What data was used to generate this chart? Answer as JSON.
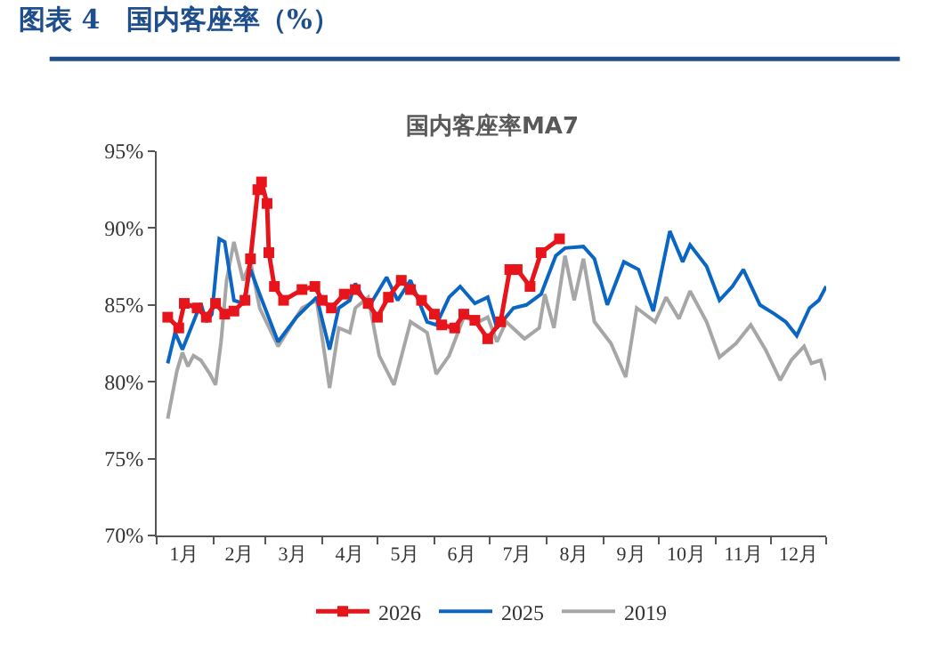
{
  "chart_data": {
    "type": "line",
    "title": "图表 4　国内客座率（%）",
    "subtitle": "国内客座率MA7",
    "xlim": [
      "--01-01",
      "--12-31"
    ],
    "xticks": [
      {
        "value": "--01-01",
        "label": null
      },
      {
        "value": "--01-16",
        "label": "1月"
      },
      {
        "value": "--02-01",
        "label": null
      },
      {
        "value": "--02-15",
        "label": "2月"
      },
      {
        "value": "--03-01",
        "label": null
      },
      {
        "value": "--03-16",
        "label": "3月"
      },
      {
        "value": "--04-01",
        "label": null
      },
      {
        "value": "--04-16",
        "label": "4月"
      },
      {
        "value": "--05-01",
        "label": null
      },
      {
        "value": "--05-16",
        "label": "5月"
      },
      {
        "value": "--06-01",
        "label": null
      },
      {
        "value": "--06-16",
        "label": "6月"
      },
      {
        "value": "--07-01",
        "label": null
      },
      {
        "value": "--07-16",
        "label": "7月"
      },
      {
        "value": "--08-01",
        "label": null
      },
      {
        "value": "--08-16",
        "label": "8月"
      },
      {
        "value": "--09-01",
        "label": null
      },
      {
        "value": "--09-16",
        "label": "9月"
      },
      {
        "value": "--10-01",
        "label": null
      },
      {
        "value": "--10-16",
        "label": "10月"
      },
      {
        "value": "--11-01",
        "label": null
      },
      {
        "value": "--11-16",
        "label": "11月"
      },
      {
        "value": "--12-01",
        "label": null
      },
      {
        "value": "--12-16",
        "label": "12月"
      },
      {
        "value": "--12-31",
        "label": null
      }
    ],
    "ylim": [
      70,
      95
    ],
    "yticks": [
      {
        "value": 70,
        "label": "70%"
      },
      {
        "value": 75,
        "label": "75%"
      },
      {
        "value": 80,
        "label": "80%"
      },
      {
        "value": 85,
        "label": "85%"
      },
      {
        "value": 90,
        "label": "90%"
      },
      {
        "value": 95,
        "label": "95%"
      }
    ],
    "legend": "bottom",
    "series": [
      {
        "name": "2026",
        "color": "#e8141b",
        "marker": "square",
        "x": [
          "--01-07",
          "--01-13",
          "--01-16",
          "--01-23",
          "--01-28",
          "--02-02",
          "--02-07",
          "--02-12",
          "--02-18",
          "--02-21",
          "--02-25",
          "--02-27",
          "--03-02",
          "--03-03",
          "--03-06",
          "--03-11",
          "--03-21",
          "--03-28",
          "--04-01",
          "--04-06",
          "--04-13",
          "--04-19",
          "--04-26",
          "--05-01",
          "--05-07",
          "--05-14",
          "--05-19",
          "--05-25",
          "--06-01",
          "--06-05",
          "--06-12",
          "--06-17",
          "--06-23",
          "--06-30",
          "--07-07",
          "--07-12",
          "--07-16",
          "--07-23",
          "--07-29",
          "--08-08"
        ],
        "values": [
          84.2,
          83.5,
          85.1,
          84.8,
          84.2,
          85.1,
          84.4,
          84.6,
          85.3,
          88.0,
          92.5,
          93.0,
          91.6,
          88.4,
          86.2,
          85.3,
          86.0,
          86.2,
          85.3,
          84.8,
          85.7,
          86.0,
          85.1,
          84.2,
          85.5,
          86.6,
          86.0,
          85.3,
          84.4,
          83.7,
          83.5,
          84.4,
          84.0,
          82.8,
          83.9,
          87.3,
          87.3,
          86.2,
          88.4,
          89.3
        ]
      },
      {
        "name": "2025",
        "color": "#0a66c2",
        "x": [
          "--01-07",
          "--01-11",
          "--01-15",
          "--01-25",
          "--01-28",
          "--01-31",
          "--02-04",
          "--02-07",
          "--02-12",
          "--02-17",
          "--02-21",
          "--02-26",
          "--03-08",
          "--03-18",
          "--03-29",
          "--04-05",
          "--04-10",
          "--04-16",
          "--04-19",
          "--04-26",
          "--05-06",
          "--05-12",
          "--05-19",
          "--05-28",
          "--06-02",
          "--06-09",
          "--06-15",
          "--06-23",
          "--06-30",
          "--07-05",
          "--07-14",
          "--07-21",
          "--07-29",
          "--08-06",
          "--08-11",
          "--08-21",
          "--08-27",
          "--09-03",
          "--09-12",
          "--09-20",
          "--09-28",
          "--10-07",
          "--10-14",
          "--10-18",
          "--10-27",
          "--11-03",
          "--11-10",
          "--11-16",
          "--11-25",
          "--12-03",
          "--12-09",
          "--12-15",
          "--12-22",
          "--12-27",
          "--12-31"
        ],
        "values": [
          81.2,
          83.2,
          82.1,
          85.1,
          83.9,
          84.4,
          89.3,
          89.1,
          85.3,
          85.1,
          87.3,
          85.7,
          82.6,
          84.2,
          85.5,
          82.1,
          84.8,
          85.3,
          86.4,
          84.8,
          86.8,
          85.3,
          86.6,
          83.9,
          83.7,
          85.5,
          86.2,
          85.1,
          85.5,
          83.5,
          84.8,
          85.0,
          85.7,
          88.2,
          88.7,
          88.8,
          88.0,
          85.0,
          87.8,
          87.3,
          84.6,
          89.8,
          87.8,
          88.9,
          87.5,
          85.3,
          86.2,
          87.3,
          85.0,
          84.4,
          83.9,
          83.0,
          84.8,
          85.3,
          86.2
        ]
      },
      {
        "name": "2019",
        "color": "#a6a6a6",
        "x": [
          "--01-07",
          "--01-12",
          "--01-15",
          "--01-18",
          "--01-21",
          "--01-25",
          "--01-30",
          "--02-02",
          "--02-05",
          "--02-08",
          "--02-12",
          "--02-17",
          "--02-21",
          "--02-26",
          "--03-08",
          "--03-21",
          "--03-29",
          "--04-05",
          "--04-10",
          "--04-16",
          "--04-19",
          "--04-26",
          "--05-02",
          "--05-10",
          "--05-19",
          "--05-28",
          "--06-02",
          "--06-09",
          "--06-17",
          "--06-25",
          "--06-30",
          "--07-05",
          "--07-10",
          "--07-20",
          "--07-28",
          "--07-31",
          "--08-05",
          "--08-11",
          "--08-16",
          "--08-21",
          "--08-27",
          "--09-05",
          "--09-13",
          "--09-19",
          "--09-29",
          "--10-05",
          "--10-12",
          "--10-18",
          "--10-27",
          "--11-03",
          "--11-12",
          "--11-20",
          "--11-28",
          "--12-06",
          "--12-12",
          "--12-19",
          "--12-23",
          "--12-28",
          "--12-31"
        ],
        "values": [
          77.6,
          80.7,
          81.9,
          81.0,
          81.7,
          81.4,
          80.5,
          79.8,
          82.6,
          86.6,
          89.1,
          86.6,
          87.8,
          84.8,
          82.3,
          84.8,
          85.3,
          79.6,
          83.5,
          83.2,
          84.8,
          85.5,
          81.7,
          79.8,
          83.9,
          83.2,
          80.5,
          81.7,
          84.2,
          83.9,
          84.2,
          82.6,
          83.9,
          82.8,
          83.5,
          85.7,
          83.5,
          88.2,
          85.3,
          88.0,
          83.9,
          82.5,
          80.3,
          84.8,
          83.9,
          85.5,
          84.1,
          85.9,
          83.9,
          81.6,
          82.5,
          83.7,
          82.1,
          80.1,
          81.4,
          82.3,
          81.2,
          81.4,
          80.1
        ]
      }
    ]
  }
}
